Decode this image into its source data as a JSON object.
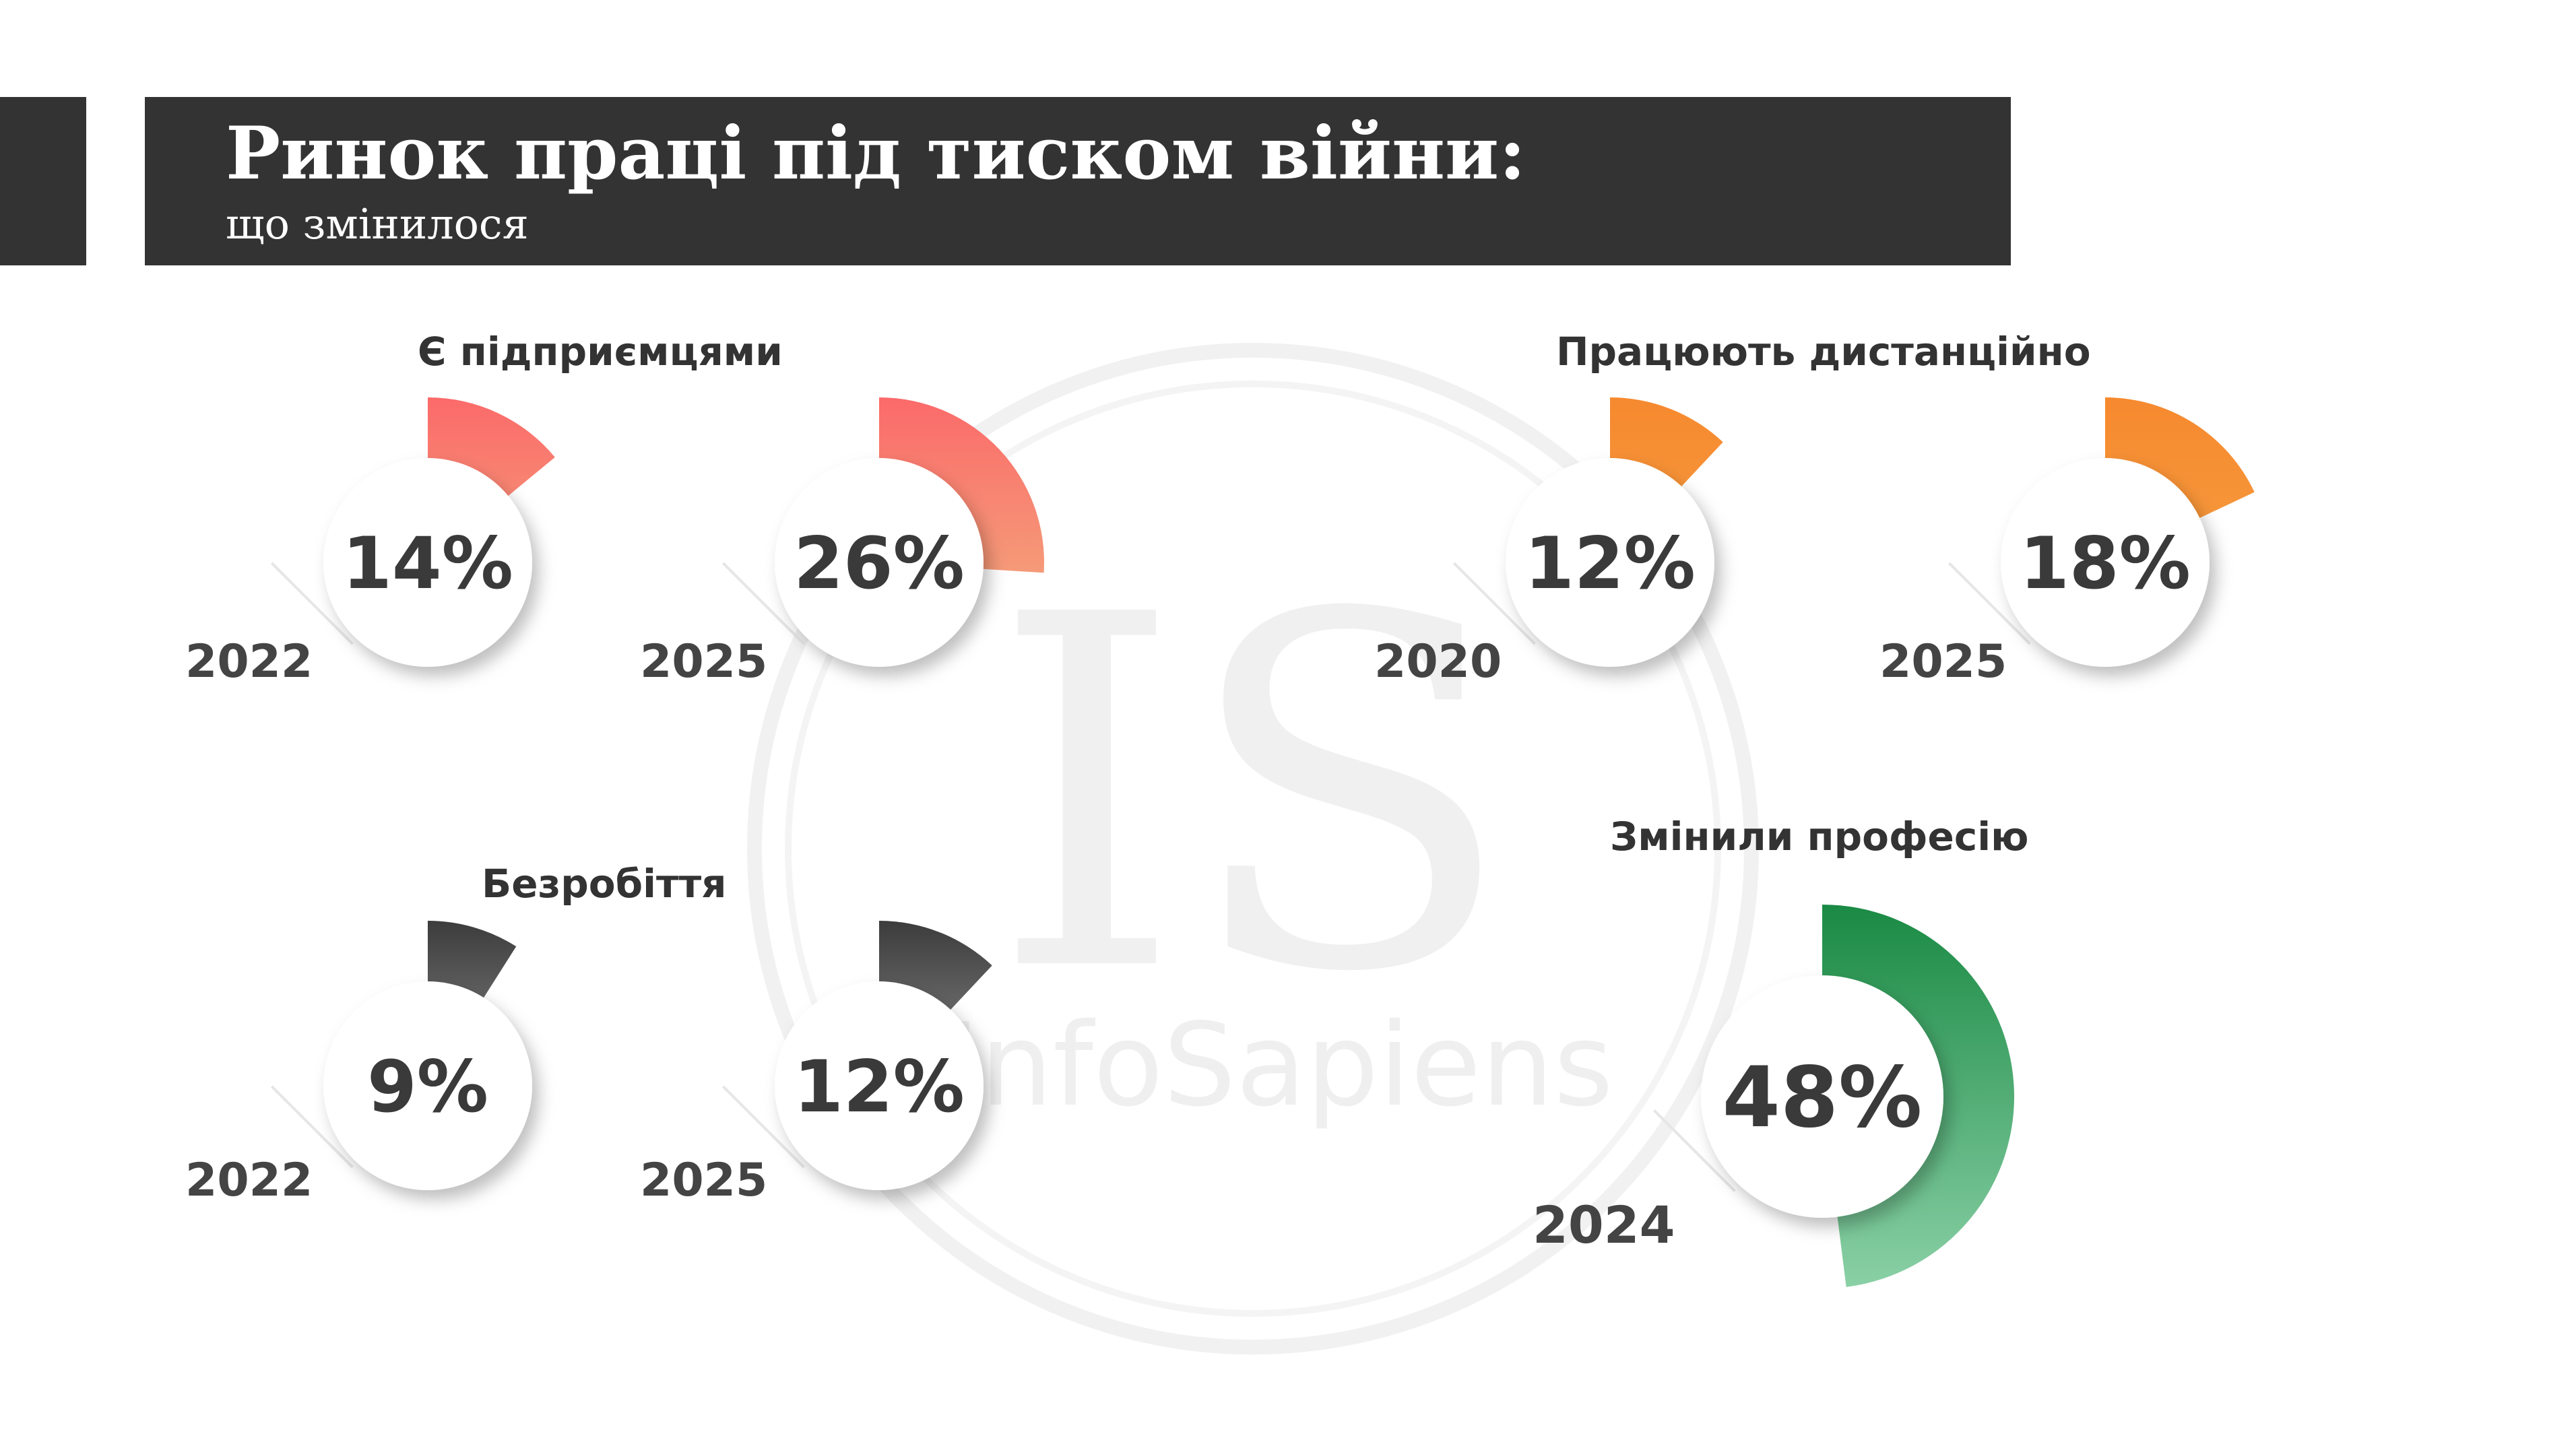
{
  "header": {
    "title": "Ринок праці під тиском війни:",
    "subtitle": "що змінилося"
  },
  "watermark": {
    "text": "IS",
    "brand": "InfoSapiens"
  },
  "colors": {
    "header_bg": "#333333",
    "entrepreneurs": [
      "#fb6a6a",
      "#f59a78"
    ],
    "remote": [
      "#f6892f",
      "#f79a3d"
    ],
    "unemployment": [
      "#3c3c3c",
      "#8a8a8a"
    ],
    "career_change": [
      "#1a8a44",
      "#8ad0a6"
    ]
  },
  "chart_data": [
    {
      "type": "pie",
      "title": "Є підприємцями",
      "categories": [
        "2022",
        "2025"
      ],
      "values": [
        14,
        26
      ],
      "labels": [
        "14%",
        "26%"
      ]
    },
    {
      "type": "pie",
      "title": "Працюють дистанційно",
      "categories": [
        "2020",
        "2025"
      ],
      "values": [
        12,
        18
      ],
      "labels": [
        "12%",
        "18%"
      ]
    },
    {
      "type": "pie",
      "title": "Безробіття",
      "categories": [
        "2022",
        "2025"
      ],
      "values": [
        9,
        12
      ],
      "labels": [
        "9%",
        "12%"
      ]
    },
    {
      "type": "pie",
      "title": "Змінили професію",
      "categories": [
        "2024"
      ],
      "values": [
        48
      ],
      "labels": [
        "48%"
      ]
    }
  ]
}
